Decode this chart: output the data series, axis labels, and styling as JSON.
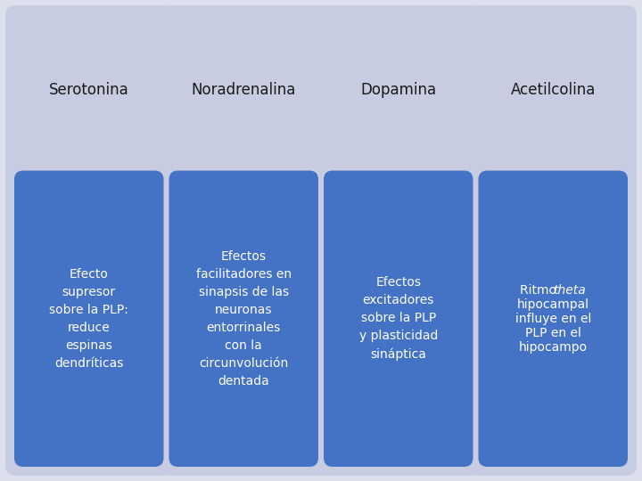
{
  "background_color": "#dde0ec",
  "columns": [
    {
      "title": "Serotonina",
      "body": "Efecto\nsupresor\nsobre la PLP:\nreduce\nespinas\ndendríticas",
      "body_italic_word": null
    },
    {
      "title": "Noradrenalina",
      "body": "Efectos\nfacilitadores en\nsinapsis de las\nneuronas\nentorrinales\ncon la\ncircunvolución\ndentada",
      "body_italic_word": null
    },
    {
      "title": "Dopamina",
      "body": "Efectos\nexcitadores\nsobre la PLP\ny plasticidad\nsináptica",
      "body_italic_word": null
    },
    {
      "title": "Acetilcolina",
      "body": "Ritmo theta\nhipocampal\ninfluye en el\nPLP en el\nhipocampo",
      "body_italic_word": "theta"
    }
  ],
  "outer_box_color": "#c8cce0",
  "inner_box_color": "#4472c4",
  "title_color": "#1a1a1a",
  "body_text_color": "#ffffff",
  "title_fontsize": 12,
  "body_fontsize": 10,
  "fig_width": 7.2,
  "fig_height": 5.4
}
